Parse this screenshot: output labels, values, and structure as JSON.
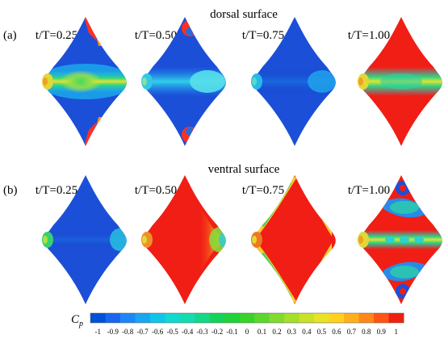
{
  "sections": [
    {
      "panel_label": "(a)",
      "surface_title": "dorsal surface",
      "frames": [
        {
          "label": "t/T=0.25",
          "pattern": "dorsal-025"
        },
        {
          "label": "t/T=0.50",
          "pattern": "dorsal-050"
        },
        {
          "label": "t/T=0.75",
          "pattern": "dorsal-075"
        },
        {
          "label": "t/T=1.00",
          "pattern": "dorsal-100"
        }
      ]
    },
    {
      "panel_label": "(b)",
      "surface_title": "ventral surface",
      "frames": [
        {
          "label": "t/T=0.25",
          "pattern": "ventral-025"
        },
        {
          "label": "t/T=0.50",
          "pattern": "ventral-050"
        },
        {
          "label": "t/T=0.75",
          "pattern": "ventral-075"
        },
        {
          "label": "t/T=1.00",
          "pattern": "ventral-100"
        }
      ]
    }
  ],
  "colorbar": {
    "variable": "C",
    "subscript": "p",
    "tick_labels": [
      "-1",
      "-0.9",
      "-0.8",
      "-0.7",
      "-0.6",
      "-0.5",
      "-0.4",
      "-0.3",
      "-0.2",
      "-0.1",
      "0",
      "0.1",
      "0.2",
      "0.3",
      "0.4",
      "0.5",
      "0.6",
      "0.7",
      "0.8",
      "0.9",
      "1"
    ],
    "colors": [
      "#0050d8",
      "#1a66f0",
      "#1f86f7",
      "#1aa6f0",
      "#12c4ea",
      "#12d8d0",
      "#14dcae",
      "#14d888",
      "#16d25a",
      "#22d23a",
      "#38d42c",
      "#5ed630",
      "#82da2e",
      "#a6de2c",
      "#c8e22a",
      "#e8e228",
      "#ffd220",
      "#ffb01c",
      "#ff8818",
      "#ff5414",
      "#f02010"
    ]
  }
}
